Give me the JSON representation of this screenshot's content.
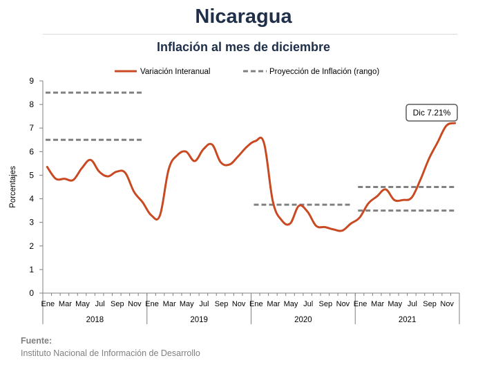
{
  "header": {
    "title": "Nicaragua",
    "subtitle": "Inflación al mes de diciembre"
  },
  "source": {
    "label": "Fuente:",
    "text": "Instituto Nacional de Información de  Desarrollo"
  },
  "colors": {
    "series": "#c94a22",
    "projection": "#808080",
    "axis": "#7f7f7f",
    "text": "#1f2f49",
    "callout_border": "#595959"
  },
  "chart_data": {
    "type": "line",
    "title": "Inflación al mes de diciembre",
    "xlabel": "",
    "ylabel": "Porcentajes",
    "ylim": [
      0,
      9
    ],
    "y_ticks": [
      "0",
      "1",
      "2",
      "3",
      "4",
      "5",
      "6",
      "7",
      "8",
      "9"
    ],
    "grid": false,
    "legend_position": "top",
    "month_tick_labels": [
      "Ene",
      "Mar",
      "May",
      "Jul",
      "Sep",
      "Nov"
    ],
    "years": [
      "2018",
      "2019",
      "2020",
      "2021"
    ],
    "series": [
      {
        "name": "Variación Interanual",
        "style": "solid",
        "values": [
          5.35,
          4.85,
          4.85,
          4.8,
          5.3,
          5.65,
          5.15,
          4.95,
          5.15,
          5.1,
          4.3,
          3.85,
          3.3,
          3.3,
          5.25,
          5.85,
          6.0,
          5.6,
          6.1,
          6.3,
          5.55,
          5.45,
          5.8,
          6.2,
          6.45,
          6.35,
          3.9,
          3.1,
          2.95,
          3.7,
          3.45,
          2.85,
          2.8,
          2.7,
          2.65,
          2.95,
          3.2,
          3.8,
          4.1,
          4.4,
          3.95,
          3.95,
          4.05,
          4.8,
          5.7,
          6.4,
          7.1,
          7.21
        ]
      },
      {
        "name": "Proyección de Inflación (rango)",
        "style": "dashed",
        "segments": [
          {
            "year": "2018",
            "start_month": 1,
            "end_month": 12,
            "y": 8.5
          },
          {
            "year": "2018",
            "start_month": 1,
            "end_month": 12,
            "y": 6.5
          },
          {
            "year": "2020",
            "start_month": 1,
            "end_month": 12,
            "y": 3.75
          },
          {
            "year": "2021",
            "start_month": 1,
            "end_month": 12,
            "y": 4.5
          },
          {
            "year": "2021",
            "start_month": 1,
            "end_month": 12,
            "y": 3.5
          }
        ]
      }
    ],
    "annotations": [
      {
        "text": "Dic 7.21%",
        "target_month": 48,
        "target_value": 7.21
      }
    ]
  }
}
